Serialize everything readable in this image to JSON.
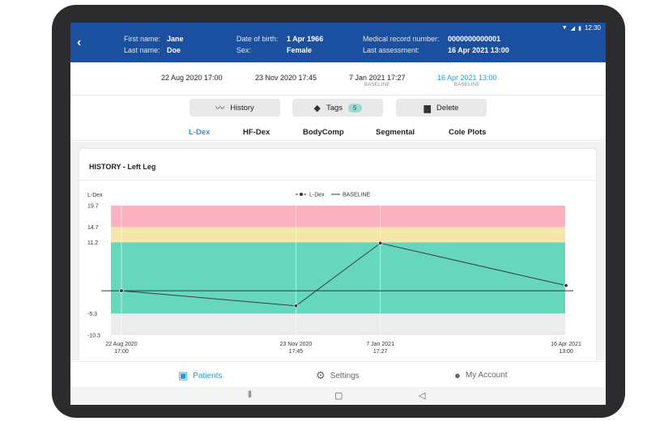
{
  "status": {
    "time": "12:30"
  },
  "patient": {
    "first_name_label": "First name:",
    "first_name": "Jane",
    "last_name_label": "Last name:",
    "last_name": "Doe",
    "dob_label": "Date of birth:",
    "dob": "1 Apr 1966",
    "sex_label": "Sex:",
    "sex": "Female",
    "mrn_label": "Medical record number:",
    "mrn": "0000000000001",
    "last_assess_label": "Last assessment:",
    "last_assess": "16 Apr 2021 13:00"
  },
  "assessments": [
    {
      "date": "22 Aug 2020 17:00",
      "sub": ""
    },
    {
      "date": "23 Nov 2020 17:45",
      "sub": ""
    },
    {
      "date": "7 Jan 2021 17:27",
      "sub": "BASELINE"
    },
    {
      "date": "16 Apr 2021 13:00",
      "sub": "BASELINE"
    }
  ],
  "actions": {
    "history": "History",
    "tags": "Tags",
    "tags_count": "5",
    "delete": "Delete"
  },
  "tabs": [
    "L-Dex",
    "HF-Dex",
    "BodyComp",
    "Segmental",
    "Cole Plots"
  ],
  "card": {
    "title": "HISTORY - Left Leg"
  },
  "colors": {
    "header": "#1b4fa0",
    "accent": "#1e9de0",
    "red_zone": "#fcb1c0",
    "yellow_zone": "#f6e6a9",
    "green_zone": "#66d7bd",
    "below_zone": "#ececee"
  },
  "chart_data": {
    "type": "line",
    "ylabel": "L-Dex",
    "y_ticks": [
      "19.7",
      "14.7",
      "11.2",
      "-5.3",
      "-10.3"
    ],
    "ylim": [
      -10.3,
      19.7
    ],
    "baseline": 0,
    "zones": [
      {
        "from": 14.7,
        "to": 19.7,
        "color": "#fcb1c0"
      },
      {
        "from": 11.2,
        "to": 14.7,
        "color": "#f6e6a9"
      },
      {
        "from": -5.3,
        "to": 11.2,
        "color": "#66d7bd"
      },
      {
        "from": -10.3,
        "to": -5.3,
        "color": "#ececee"
      }
    ],
    "legend": [
      {
        "name": "L-Dex"
      },
      {
        "name": "BASELINE"
      }
    ],
    "points": [
      {
        "date": "22 Aug 2020",
        "time": "17:00",
        "day": 0,
        "value": 0
      },
      {
        "date": "23 Nov 2020",
        "time": "17:45",
        "day": 93,
        "value": -3.5
      },
      {
        "date": "7 Jan 2021",
        "time": "17:27",
        "day": 138,
        "value": 11
      },
      {
        "date": "16 Apr 2021",
        "time": "13:00",
        "day": 237,
        "value": 1.2
      }
    ]
  },
  "nav": {
    "patients": "Patients",
    "settings": "Settings",
    "account": "My Account"
  }
}
